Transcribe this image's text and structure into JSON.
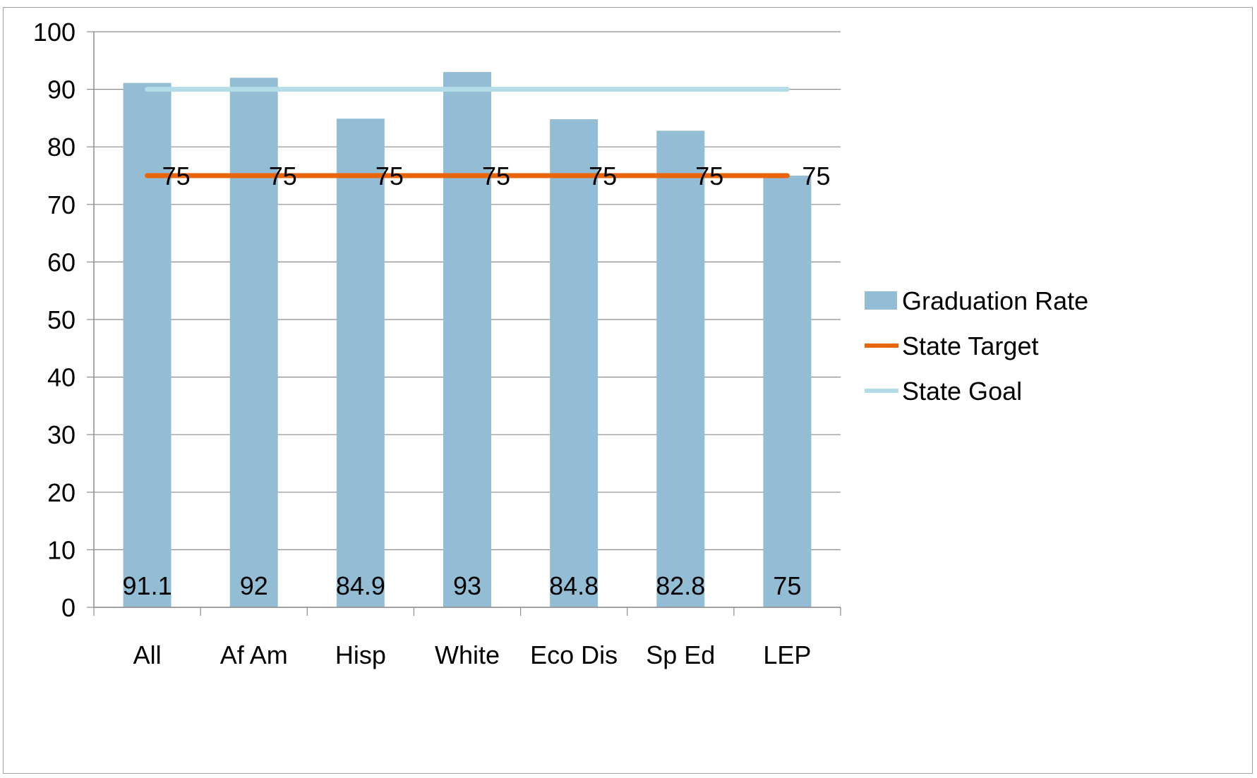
{
  "chart_data": {
    "type": "bar",
    "title": "",
    "xlabel": "",
    "ylabel": "",
    "categories": [
      "All",
      "Af Am",
      "Hisp",
      "White",
      "Eco Dis",
      "Sp Ed",
      "LEP"
    ],
    "ylim": [
      0,
      100
    ],
    "yticks": [
      0,
      10,
      20,
      30,
      40,
      50,
      60,
      70,
      80,
      90,
      100
    ],
    "grid": true,
    "legend_position": "right",
    "series": [
      {
        "name": "Graduation Rate",
        "kind": "bar",
        "color": "#93bdd4",
        "values": [
          91.1,
          92,
          84.9,
          93,
          84.8,
          82.8,
          75
        ],
        "labels": [
          "91.1",
          "92",
          "84.9",
          "93",
          "84.8",
          "82.8",
          "75"
        ]
      },
      {
        "name": "State Target",
        "kind": "line",
        "color": "#e8650a",
        "values": [
          75,
          75,
          75,
          75,
          75,
          75,
          75
        ],
        "labels": [
          "75",
          "75",
          "75",
          "75",
          "75",
          "75",
          "75"
        ]
      },
      {
        "name": "State Goal",
        "kind": "line",
        "color": "#b3dce6",
        "values": [
          90,
          90,
          90,
          90,
          90,
          90,
          90
        ]
      }
    ]
  }
}
